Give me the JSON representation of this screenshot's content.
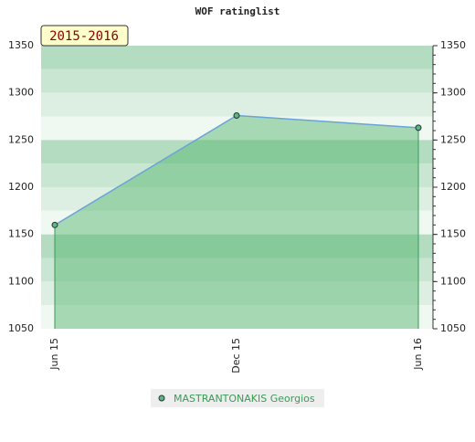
{
  "chart_data": {
    "type": "area",
    "title": "WOF ratinglist",
    "annotation": "2015-2016",
    "categories": [
      "Jun 15",
      "Dec 15",
      "Jun 16"
    ],
    "series": [
      {
        "name": "MASTRANTONAKIS Georgios",
        "color": "#5cb874",
        "line_color": "#6aa3d8",
        "values": [
          1160,
          1276,
          1263
        ]
      }
    ],
    "ylim": [
      1050,
      1350
    ],
    "yticks": [
      1050,
      1100,
      1150,
      1200,
      1250,
      1300,
      1350
    ],
    "right_axis": true
  }
}
